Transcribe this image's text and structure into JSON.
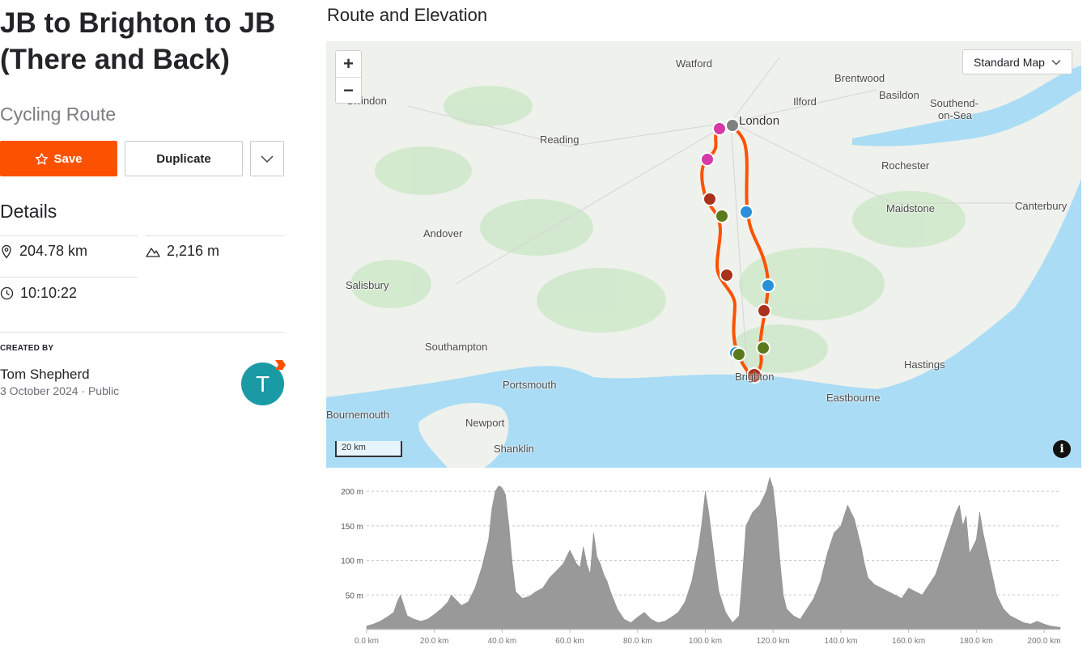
{
  "route": {
    "title": "JB to Brighton to JB (There and Back)",
    "type": "Cycling Route"
  },
  "actions": {
    "save_label": "Save",
    "duplicate_label": "Duplicate"
  },
  "details": {
    "heading": "Details",
    "distance": "204.78 km",
    "elevation_gain": "2,216 m",
    "moving_time": "10:10:22"
  },
  "creator": {
    "label": "CREATED BY",
    "name": "Tom Shepherd",
    "date": "3 October 2024",
    "visibility": "Public",
    "avatar_initial": "T"
  },
  "map": {
    "section_title": "Route and Elevation",
    "map_type": "Standard Map",
    "zoom_in": "+",
    "zoom_out": "−",
    "scale": "20 km",
    "info": "i",
    "places": [
      "Watford",
      "London",
      "Brentwood",
      "Basildon",
      "Southend-",
      "on-Sea",
      "Ilford",
      "Swindon",
      "Reading",
      "Rochester",
      "Maidstone",
      "Canterbury",
      "Andover",
      "Salisbury",
      "Southampton",
      "Portsmouth",
      "Hastings",
      "Eastbourne",
      "Brighton",
      "Newport",
      "Shanklin",
      "Bournemouth"
    ],
    "colors": {
      "route": "#fc5200",
      "water": "#aadcf5",
      "land": "#eef1ec"
    }
  },
  "chart_data": {
    "type": "area",
    "title": "",
    "xlabel": "",
    "ylabel": "",
    "x_ticks": [
      "0.0 km",
      "20.0 km",
      "40.0 km",
      "60.0 km",
      "80.0 km",
      "100.0 km",
      "120.0 km",
      "140.0 km",
      "160.0 km",
      "180.0 km",
      "200.0 km"
    ],
    "y_ticks": [
      "50 m",
      "100 m",
      "150 m",
      "200 m"
    ],
    "xlim": [
      0,
      204.78
    ],
    "ylim": [
      0,
      220
    ],
    "grid": true,
    "fill_color": "#999999",
    "x": [
      0,
      2,
      4,
      6,
      8,
      9,
      10,
      11,
      12,
      14,
      16,
      18,
      20,
      22,
      24,
      25,
      26,
      28,
      30,
      32,
      34,
      36,
      37,
      38,
      39,
      40,
      41,
      42,
      43,
      44,
      46,
      48,
      50,
      52,
      54,
      56,
      58,
      60,
      62,
      63,
      64,
      65,
      66,
      67,
      68,
      69,
      70,
      71,
      72,
      74,
      76,
      78,
      80,
      82,
      84,
      86,
      88,
      90,
      92,
      94,
      96,
      98,
      99,
      100,
      101,
      102,
      103,
      104,
      106,
      108,
      110,
      111,
      112,
      114,
      116,
      118,
      119,
      120,
      121,
      122,
      123,
      124,
      126,
      128,
      130,
      132,
      134,
      136,
      138,
      140,
      142,
      144,
      145,
      146,
      147,
      148,
      150,
      152,
      154,
      156,
      158,
      160,
      162,
      164,
      166,
      168,
      170,
      172,
      174,
      175,
      176,
      177,
      178,
      180,
      181,
      182,
      184,
      186,
      188,
      190,
      192,
      194,
      196,
      198,
      200,
      202,
      204.78
    ],
    "values": [
      5,
      8,
      12,
      18,
      25,
      40,
      50,
      35,
      20,
      15,
      12,
      15,
      22,
      30,
      40,
      50,
      45,
      35,
      40,
      60,
      90,
      130,
      175,
      200,
      208,
      205,
      195,
      150,
      95,
      55,
      45,
      48,
      55,
      60,
      75,
      85,
      95,
      115,
      95,
      90,
      120,
      95,
      80,
      140,
      105,
      95,
      80,
      70,
      55,
      30,
      15,
      10,
      18,
      25,
      15,
      10,
      12,
      18,
      25,
      40,
      70,
      120,
      155,
      200,
      170,
      130,
      90,
      55,
      25,
      10,
      20,
      80,
      150,
      170,
      180,
      200,
      220,
      205,
      160,
      100,
      50,
      30,
      20,
      15,
      30,
      45,
      70,
      110,
      140,
      150,
      180,
      160,
      140,
      120,
      95,
      75,
      65,
      60,
      55,
      50,
      45,
      60,
      55,
      50,
      65,
      80,
      110,
      140,
      170,
      180,
      150,
      165,
      110,
      130,
      170,
      140,
      95,
      50,
      30,
      20,
      15,
      10,
      8,
      12,
      8,
      5,
      3
    ]
  }
}
